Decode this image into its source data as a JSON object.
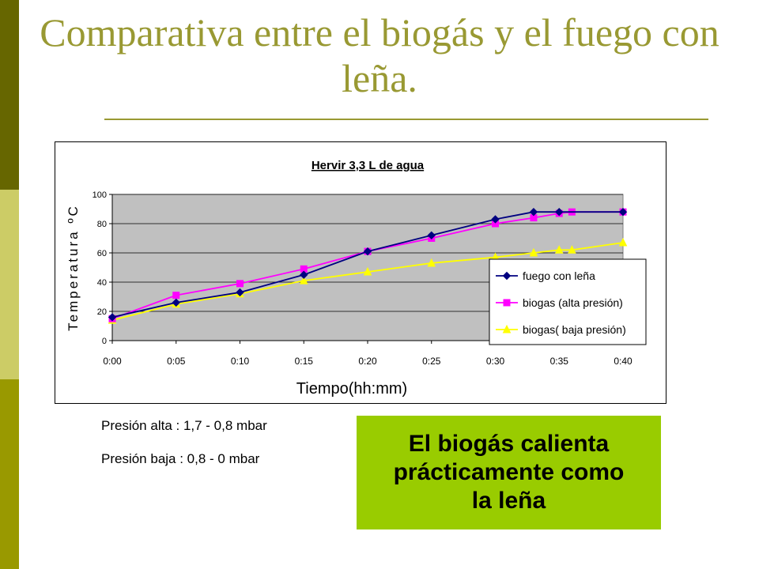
{
  "slide": {
    "title": "Comparativa entre el biogás y el fuego con leña.",
    "notes": [
      "Presión alta : 1,7 - 0,8 mbar",
      "Presión baja : 0,8 - 0 mbar"
    ],
    "callout": "El biogás calienta\nprácticamente como\nla leña"
  },
  "theme": {
    "title_color": "#999933",
    "bar_colors": [
      "#666600",
      "#cccc66",
      "#999900"
    ],
    "callout_bg": "#99cc00"
  },
  "chart_data": {
    "type": "line",
    "title": "Hervir 3,3 L de agua",
    "xlabel": "Tiempo(hh:mm)",
    "ylabel": "Temperatura ºC",
    "x_ticks": [
      "0:00",
      "0:05",
      "0:10",
      "0:15",
      "0:20",
      "0:25",
      "0:30",
      "0:35",
      "0:40"
    ],
    "xlim": [
      "0:00",
      "0:40"
    ],
    "ylim": [
      0,
      100
    ],
    "y_ticks": [
      0,
      20,
      40,
      60,
      80,
      100
    ],
    "grid": true,
    "plot_background": "#c0c0c0",
    "legend_position": "right",
    "series": [
      {
        "name": "fuego con leña",
        "color": "#000080",
        "marker": "diamond",
        "x": [
          "0:00",
          "0:05",
          "0:10",
          "0:15",
          "0:20",
          "0:25",
          "0:30",
          "0:33",
          "0:35",
          "0:40"
        ],
        "y": [
          16,
          26,
          33,
          45,
          61,
          72,
          83,
          88,
          88,
          88
        ]
      },
      {
        "name": "biogas (alta presión)",
        "color": "#ff00ff",
        "marker": "square",
        "x": [
          "0:00",
          "0:05",
          "0:10",
          "0:15",
          "0:20",
          "0:25",
          "0:30",
          "0:33",
          "0:35",
          "0:36",
          "0:40"
        ],
        "y": [
          15,
          31,
          39,
          49,
          61,
          70,
          80,
          84,
          87,
          88,
          88
        ]
      },
      {
        "name": "biogas( baja presión)",
        "color": "#ffff00",
        "marker": "triangle",
        "x": [
          "0:00",
          "0:05",
          "0:10",
          "0:15",
          "0:20",
          "0:25",
          "0:30",
          "0:33",
          "0:35",
          "0:36",
          "0:40"
        ],
        "y": [
          14,
          25,
          32,
          41,
          47,
          53,
          57,
          60,
          62,
          62,
          67
        ]
      }
    ]
  }
}
